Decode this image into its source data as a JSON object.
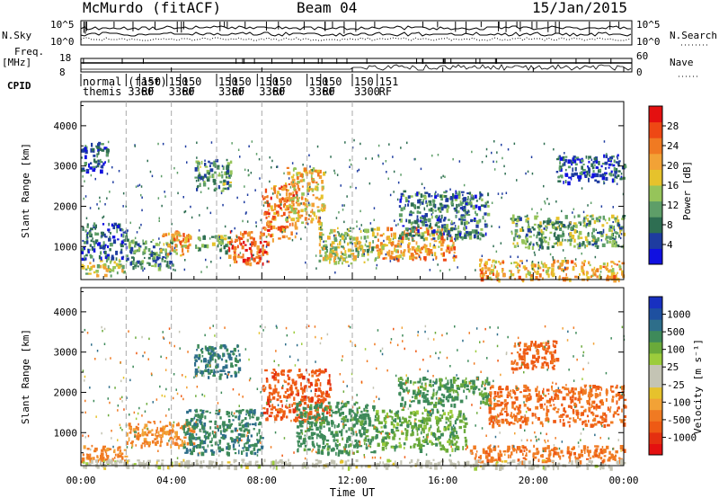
{
  "header": {
    "station": "McMurdo (fitACF)",
    "beam": "Beam 04",
    "date": "15/Jan/2015"
  },
  "strips": {
    "nsky_label": "N.Sky",
    "nsky_top": "10^5",
    "nsky_bottom": "10^0",
    "nsearch_label": "N.Search",
    "nsearch_top": "10^5",
    "nsearch_bottom": "10^0",
    "freq_label_1": "Freq.",
    "freq_label_2": "[MHz]",
    "freq_top": "18",
    "freq_bottom": "8",
    "nave_label": "Nave",
    "nave_top": "60",
    "nave_bottom": "0",
    "cpid_label": "CPID",
    "cpid_entries": [
      {
        "t": 0.0,
        "row1": "normal",
        "row2": "themis"
      },
      {
        "t": 2.0,
        "row1": "(fast)",
        "row2": "3360"
      },
      {
        "t": 2.6,
        "row1": "150",
        "row2": "RF"
      },
      {
        "t": 3.8,
        "row1": "150",
        "row2": "3360"
      },
      {
        "t": 4.4,
        "row1": "150",
        "row2": "RF"
      },
      {
        "t": 6.0,
        "row1": "150",
        "row2": "3360"
      },
      {
        "t": 6.6,
        "row1": "150",
        "row2": "RF"
      },
      {
        "t": 7.8,
        "row1": "150",
        "row2": "3360"
      },
      {
        "t": 8.4,
        "row1": "150",
        "row2": "RF"
      },
      {
        "t": 10.0,
        "row1": "150",
        "row2": "3360"
      },
      {
        "t": 10.6,
        "row1": "150",
        "row2": "RF"
      },
      {
        "t": 12.0,
        "row1": "150",
        "row2": "3300"
      },
      {
        "t": 13.1,
        "row1": "151",
        "row2": "RF"
      }
    ]
  },
  "power_panel": {
    "ylabel": "Slant Range [km]",
    "cbar_label": "Power [dB]",
    "cbar_ticks": [
      "4",
      "8",
      "12",
      "16",
      "20",
      "24",
      "28"
    ],
    "cbar_colors": [
      "#1010e0",
      "#1e3ca0",
      "#2e6e52",
      "#5e9e68",
      "#96c45a",
      "#e6c22c",
      "#f2a236",
      "#f07a22",
      "#ee4814",
      "#e41010"
    ]
  },
  "velocity_panel": {
    "ylabel": "Slant Range [km]",
    "cbar_label": "Velocity [m s⁻¹]",
    "cbar_ticks": [
      "1000",
      "500",
      "100",
      "25",
      "-25",
      "-100",
      "-500",
      "-1000"
    ],
    "cbar_colors": [
      "#1830c0",
      "#1e50a0",
      "#2e6e8a",
      "#3e8a5a",
      "#6aaa3a",
      "#9ccc3c",
      "#c4c4b4",
      "#c4c4b4",
      "#e6c22c",
      "#f2a236",
      "#f07a22",
      "#ee5a14",
      "#e43010",
      "#e41010"
    ]
  },
  "xaxis": {
    "label": "Time UT",
    "ticks": [
      "00:00",
      "04:00",
      "08:00",
      "12:00",
      "16:00",
      "20:00",
      "00:00"
    ]
  },
  "chart_data": [
    {
      "type": "heatmap",
      "title": "Power",
      "xlabel": "Time UT",
      "ylabel": "Slant Range [km]",
      "xlim": [
        0,
        24
      ],
      "ylim": [
        180,
        4600
      ],
      "x_ticks": [
        "00:00",
        "04:00",
        "08:00",
        "12:00",
        "16:00",
        "20:00",
        "00:00"
      ],
      "y_ticks": [
        1000,
        2000,
        3000,
        4000
      ],
      "colorbar": {
        "label": "Power [dB]",
        "range": [
          0,
          30
        ],
        "ticks": [
          4,
          8,
          12,
          16,
          20,
          24,
          28
        ]
      },
      "modes": [
        {
          "t0": 0.0,
          "t1": 2.0,
          "r0": 300,
          "r1": 700,
          "v": 15
        },
        {
          "t0": 0.0,
          "t1": 2.0,
          "r0": 700,
          "r1": 1600,
          "v": 6
        },
        {
          "t0": 0.0,
          "t1": 1.2,
          "r0": 2900,
          "r1": 3600,
          "v": 5
        },
        {
          "t0": 2.0,
          "t1": 4.0,
          "r0": 500,
          "r1": 1200,
          "v": 9
        },
        {
          "t0": 3.5,
          "t1": 4.8,
          "r0": 800,
          "r1": 1400,
          "v": 20
        },
        {
          "t0": 5.0,
          "t1": 6.6,
          "r0": 900,
          "r1": 1300,
          "v": 12
        },
        {
          "t0": 5.0,
          "t1": 6.6,
          "r0": 2400,
          "r1": 3200,
          "v": 10
        },
        {
          "t0": 6.5,
          "t1": 8.3,
          "r0": 600,
          "r1": 1400,
          "v": 24
        },
        {
          "t0": 8.0,
          "t1": 9.5,
          "r0": 1200,
          "r1": 2600,
          "v": 22
        },
        {
          "t0": 9.0,
          "t1": 10.7,
          "r0": 1600,
          "r1": 3000,
          "v": 18
        },
        {
          "t0": 10.5,
          "t1": 13.0,
          "r0": 600,
          "r1": 1500,
          "v": 14
        },
        {
          "t0": 13.0,
          "t1": 16.5,
          "r0": 700,
          "r1": 1500,
          "v": 20
        },
        {
          "t0": 14.0,
          "t1": 18.0,
          "r0": 1200,
          "r1": 2400,
          "v": 8
        },
        {
          "t0": 17.5,
          "t1": 24.0,
          "r0": 200,
          "r1": 700,
          "v": 19
        },
        {
          "t0": 19.0,
          "t1": 24.0,
          "r0": 1000,
          "r1": 1800,
          "v": 11
        },
        {
          "t0": 21.0,
          "t1": 24.0,
          "r0": 2600,
          "r1": 3300,
          "v": 6
        }
      ]
    },
    {
      "type": "heatmap",
      "title": "Velocity",
      "xlabel": "Time UT",
      "ylabel": "Slant Range [km]",
      "xlim": [
        0,
        24
      ],
      "ylim": [
        180,
        4600
      ],
      "x_ticks": [
        "00:00",
        "04:00",
        "08:00",
        "12:00",
        "16:00",
        "20:00",
        "00:00"
      ],
      "y_ticks": [
        1000,
        2000,
        3000,
        4000
      ],
      "colorbar": {
        "label": "Velocity [m s⁻¹]",
        "ticks": [
          1000,
          500,
          100,
          25,
          -25,
          -100,
          -500,
          -1000
        ]
      },
      "modes": [
        {
          "t0": 0.0,
          "t1": 2.0,
          "r0": 300,
          "r1": 700,
          "v": -150
        },
        {
          "t0": 2.0,
          "t1": 5.0,
          "r0": 700,
          "r1": 1300,
          "v": -120
        },
        {
          "t0": 4.5,
          "t1": 8.0,
          "r0": 500,
          "r1": 1600,
          "v": 200
        },
        {
          "t0": 5.0,
          "t1": 7.0,
          "r0": 2400,
          "r1": 3200,
          "v": 250
        },
        {
          "t0": 8.0,
          "t1": 11.0,
          "r0": 1300,
          "r1": 2600,
          "v": -400
        },
        {
          "t0": 9.5,
          "t1": 13.0,
          "r0": 500,
          "r1": 1800,
          "v": 150
        },
        {
          "t0": 13.0,
          "t1": 17.0,
          "r0": 600,
          "r1": 1600,
          "v": 80
        },
        {
          "t0": 14.0,
          "t1": 18.0,
          "r0": 1700,
          "r1": 2400,
          "v": 120
        },
        {
          "t0": 17.0,
          "t1": 24.0,
          "r0": 300,
          "r1": 700,
          "v": -200
        },
        {
          "t0": 18.0,
          "t1": 24.0,
          "r0": 1200,
          "r1": 2200,
          "v": -250
        },
        {
          "t0": 19.0,
          "t1": 21.0,
          "r0": 2600,
          "r1": 3300,
          "v": -300
        },
        {
          "t0": 0.0,
          "t1": 24.0,
          "r0": 150,
          "r1": 350,
          "v": 0
        }
      ]
    }
  ]
}
